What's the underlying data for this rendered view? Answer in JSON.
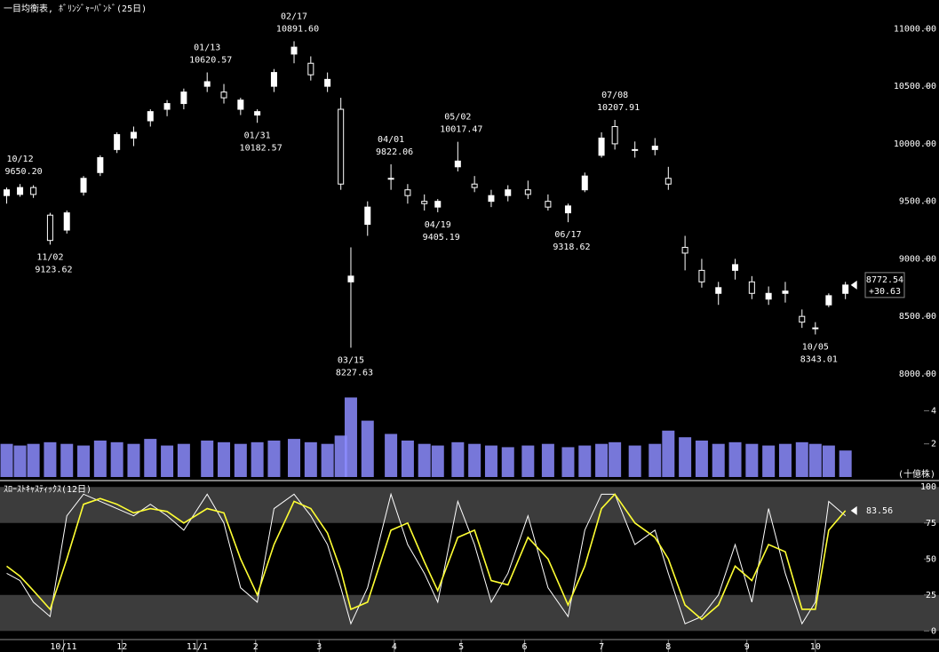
{
  "chart_data": [
    {
      "type": "candlestick",
      "title": "一目均衡表, ﾎﾞﾘﾝｼﾞｬｰﾊﾞﾝﾄﾞ(25日)",
      "x": [
        2,
        6,
        10,
        15,
        20,
        25,
        30,
        35,
        40,
        45,
        50,
        55,
        62,
        67,
        72,
        77,
        82,
        88,
        93,
        98,
        102,
        105,
        110,
        117,
        122,
        127,
        131,
        137,
        142,
        147,
        152,
        158,
        164,
        170,
        175,
        180,
        184,
        190,
        196,
        200,
        205,
        210,
        215,
        220,
        225,
        230,
        235,
        240,
        244,
        248,
        253
      ],
      "open": [
        9550,
        9560,
        9620,
        9380,
        9250,
        9580,
        9750,
        9950,
        10050,
        10200,
        10300,
        10350,
        10500,
        10450,
        10300,
        10250,
        10500,
        10780,
        10700,
        10500,
        10300,
        8800,
        9300,
        9700,
        9600,
        9500,
        9450,
        9800,
        9650,
        9500,
        9550,
        9600,
        9500,
        9400,
        9600,
        9900,
        10150,
        9950,
        9950,
        9700,
        9100,
        8900,
        8700,
        8900,
        8800,
        8650,
        8700,
        8500,
        8400,
        8600,
        8700
      ],
      "high": [
        9620,
        9650.2,
        9640,
        9400,
        9420,
        9720,
        9900,
        10100,
        10150,
        10300,
        10380,
        10480,
        10620.57,
        10520,
        10400,
        10300,
        10650,
        10891.6,
        10760,
        10620,
        10400,
        9100,
        9500,
        9822.06,
        9650,
        9560,
        9520,
        10017.47,
        9720,
        9600,
        9640,
        9680,
        9560,
        9480,
        9750,
        10100,
        10207.91,
        10020,
        10050,
        9800,
        9200,
        9000,
        8800,
        9000,
        8850,
        8760,
        8800,
        8560,
        8450,
        8700,
        8800
      ],
      "low": [
        9480,
        9540,
        9530,
        9123.62,
        9220,
        9550,
        9720,
        9920,
        9980,
        10150,
        10240,
        10300,
        10450,
        10350,
        10250,
        10182.57,
        10450,
        10700,
        10550,
        10450,
        9600,
        8227.63,
        9200,
        9600,
        9480,
        9420,
        9405.19,
        9760,
        9580,
        9450,
        9500,
        9520,
        9420,
        9318.62,
        9580,
        9880,
        9950,
        9880,
        9900,
        9600,
        8900,
        8750,
        8600,
        8820,
        8650,
        8600,
        8620,
        8400,
        8343.01,
        8580,
        8650
      ],
      "close": [
        9600,
        9620,
        9560,
        9160,
        9400,
        9700,
        9880,
        10080,
        10100,
        10280,
        10350,
        10450,
        10540,
        10400,
        10380,
        10280,
        10620,
        10840,
        10600,
        10560,
        9650,
        8850,
        9450,
        9700,
        9550,
        9480,
        9500,
        9850,
        9620,
        9550,
        9600,
        9560,
        9450,
        9460,
        9720,
        10050,
        10000,
        9950,
        9980,
        9650,
        9050,
        8800,
        8750,
        8950,
        8700,
        8700,
        8720,
        8450,
        8400,
        8680,
        8772.54
      ],
      "color": "#ffffff",
      "xlim": [
        0,
        281
      ],
      "ylim": [
        7930,
        11250
      ],
      "yticks": [
        {
          "value": 8000,
          "label": "8000.00"
        },
        {
          "value": 8500,
          "label": "8500.00"
        },
        {
          "value": 9000,
          "label": "9000.00"
        },
        {
          "value": 9500,
          "label": "9500.00"
        },
        {
          "value": 10000,
          "label": "10000.00"
        },
        {
          "value": 10500,
          "label": "10500.00"
        },
        {
          "value": 11000,
          "label": "11000.00"
        }
      ],
      "annotations": [
        {
          "x": 6,
          "y": 9650.2,
          "date": "10/12",
          "label": "9650.20"
        },
        {
          "x": 15,
          "y": 9123.62,
          "date": "11/02",
          "label": "9123.62"
        },
        {
          "x": 62,
          "y": 10620.57,
          "date": "01/13",
          "label": "10620.57"
        },
        {
          "x": 77,
          "y": 10182.57,
          "date": "01/31",
          "label": "10182.57"
        },
        {
          "x": 88,
          "y": 10891.6,
          "date": "02/17",
          "label": "10891.60"
        },
        {
          "x": 105,
          "y": 8227.63,
          "date": "03/15",
          "label": "8227.63"
        },
        {
          "x": 117,
          "y": 9822.06,
          "date": "04/01",
          "label": "9822.06"
        },
        {
          "x": 131,
          "y": 9405.19,
          "date": "04/19",
          "label": "9405.19"
        },
        {
          "x": 137,
          "y": 10017.47,
          "date": "05/02",
          "label": "10017.47"
        },
        {
          "x": 170,
          "y": 9318.62,
          "date": "06/17",
          "label": "9318.62"
        },
        {
          "x": 184,
          "y": 10207.91,
          "date": "07/08",
          "label": "10207.91"
        },
        {
          "x": 244,
          "y": 8343.01,
          "date": "10/05",
          "label": "8343.01"
        }
      ],
      "last_change": "+30.63"
    },
    {
      "type": "bar",
      "unit_label": "(十億株)",
      "x": [
        2,
        6,
        10,
        15,
        20,
        25,
        30,
        35,
        40,
        45,
        50,
        55,
        62,
        67,
        72,
        77,
        82,
        88,
        93,
        98,
        102,
        105,
        110,
        117,
        122,
        127,
        131,
        137,
        142,
        147,
        152,
        158,
        164,
        170,
        175,
        180,
        184,
        190,
        196,
        200,
        205,
        210,
        215,
        220,
        225,
        230,
        235,
        240,
        244,
        248,
        253
      ],
      "values": [
        2.0,
        1.9,
        2.0,
        2.1,
        2.0,
        1.9,
        2.2,
        2.1,
        2.0,
        2.3,
        1.9,
        2.0,
        2.2,
        2.1,
        2.0,
        2.1,
        2.2,
        2.3,
        2.1,
        2.0,
        2.5,
        4.8,
        3.4,
        2.6,
        2.2,
        2.0,
        1.9,
        2.1,
        2.0,
        1.9,
        1.8,
        1.9,
        2.0,
        1.8,
        1.9,
        2.0,
        2.1,
        1.9,
        2.0,
        2.8,
        2.4,
        2.2,
        2.0,
        2.1,
        2.0,
        1.9,
        2.0,
        2.1,
        2.0,
        1.9,
        1.6
      ],
      "color": "#8c8cff",
      "xlim": [
        0,
        281
      ],
      "ylim": [
        0,
        5.2
      ],
      "yticks": [
        2,
        4
      ]
    },
    {
      "type": "line",
      "title": "ｽﾛｰｽﾄｷｬｽﾃｨｯｸｽ(12日)",
      "x": [
        2,
        6,
        10,
        15,
        20,
        25,
        30,
        35,
        40,
        45,
        50,
        55,
        62,
        67,
        72,
        77,
        82,
        88,
        93,
        98,
        102,
        105,
        110,
        117,
        122,
        127,
        131,
        137,
        142,
        147,
        152,
        158,
        164,
        170,
        175,
        180,
        184,
        190,
        196,
        200,
        205,
        210,
        215,
        220,
        225,
        230,
        235,
        240,
        244,
        248,
        253
      ],
      "series": [
        {
          "color": "#ffffff",
          "values": [
            40,
            35,
            20,
            10,
            80,
            95,
            90,
            85,
            80,
            88,
            80,
            70,
            95,
            75,
            30,
            20,
            85,
            95,
            80,
            60,
            30,
            5,
            30,
            95,
            60,
            40,
            20,
            90,
            60,
            20,
            40,
            80,
            30,
            10,
            70,
            95,
            95,
            60,
            70,
            40,
            5,
            10,
            25,
            60,
            20,
            85,
            40,
            5,
            20,
            90,
            80
          ]
        },
        {
          "color": "#ffff33",
          "values": [
            45,
            38,
            28,
            15,
            50,
            88,
            92,
            88,
            82,
            85,
            83,
            75,
            85,
            82,
            50,
            25,
            60,
            90,
            85,
            68,
            42,
            15,
            20,
            70,
            75,
            48,
            28,
            65,
            70,
            35,
            32,
            65,
            50,
            18,
            45,
            85,
            95,
            75,
            65,
            50,
            18,
            8,
            18,
            45,
            35,
            60,
            55,
            15,
            15,
            70,
            83.56
          ]
        }
      ],
      "xlim": [
        0,
        281
      ],
      "ylim": [
        -6,
        102
      ],
      "yticks": [
        0,
        25,
        50,
        75,
        100
      ],
      "xticks": [
        {
          "value": 19,
          "label": "10/11"
        },
        {
          "value": 36.5,
          "label": "12"
        },
        {
          "value": 59,
          "label": "11/1"
        },
        {
          "value": 76.5,
          "label": "2"
        },
        {
          "value": 95.5,
          "label": "3"
        },
        {
          "value": 118,
          "label": "4"
        },
        {
          "value": 138,
          "label": "5"
        },
        {
          "value": 157,
          "label": "6"
        },
        {
          "value": 180,
          "label": "7"
        },
        {
          "value": 200,
          "label": "8"
        },
        {
          "value": 223.5,
          "label": "9"
        },
        {
          "value": 244,
          "label": "10"
        }
      ]
    }
  ]
}
